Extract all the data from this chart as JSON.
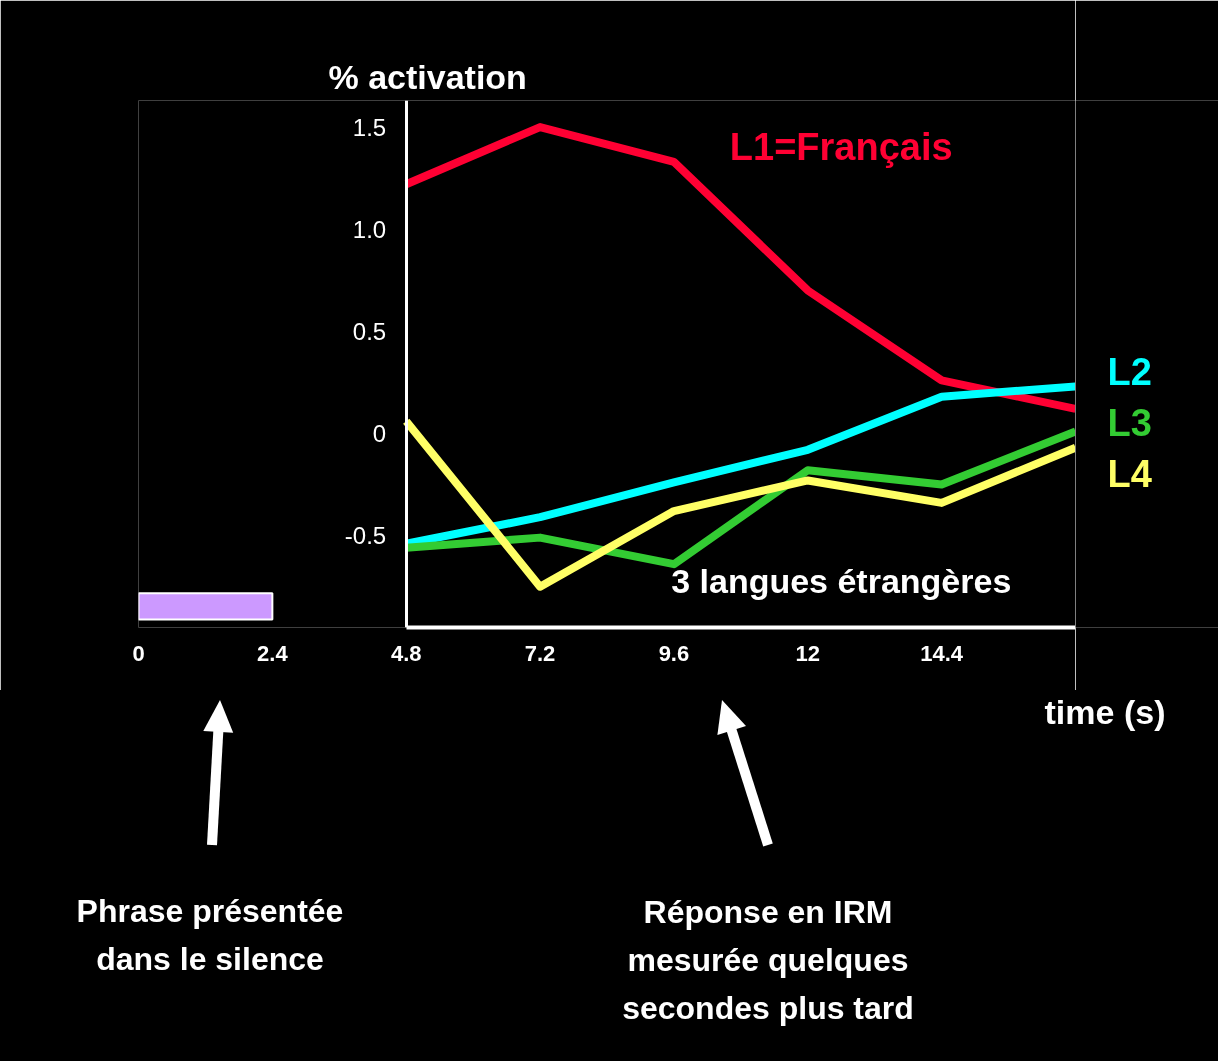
{
  "chart_data": {
    "type": "line",
    "xlabel": "time (s)",
    "ylabel": "% activation",
    "x": [
      4.8,
      7.2,
      9.6,
      12,
      14.4,
      16.8
    ],
    "series": [
      {
        "name": "L1=Français",
        "color": "#ff0033",
        "values": [
          1.22,
          1.5,
          1.33,
          0.7,
          0.26,
          0.12
        ]
      },
      {
        "name": "L2",
        "color": "#00ffff",
        "values": [
          -0.54,
          -0.41,
          -0.24,
          -0.08,
          0.18,
          0.23
        ]
      },
      {
        "name": "L3",
        "color": "#33cc33",
        "values": [
          -0.56,
          -0.51,
          -0.64,
          -0.18,
          -0.25,
          0.01
        ]
      },
      {
        "name": "L4",
        "color": "#ffff66",
        "values": [
          0.06,
          -0.75,
          -0.38,
          -0.23,
          -0.34,
          -0.07
        ]
      }
    ],
    "xlim": [
      0,
      16.8
    ],
    "ylim": [
      -0.95,
      1.63
    ],
    "xticks": [
      0,
      2.4,
      4.8,
      7.2,
      9.6,
      12,
      14.4
    ],
    "yticks": [
      {
        "value": 1.5,
        "label": "1.5"
      },
      {
        "value": 1,
        "label": "1.0"
      },
      {
        "value": 0.5,
        "label": "0.5"
      },
      {
        "value": 0,
        "label": "0"
      },
      {
        "value": -0.5,
        "label": "-0.5"
      }
    ],
    "bands": [
      {
        "axis": "x",
        "from": 0,
        "to": 2.4,
        "color": "#cc99ff"
      }
    ],
    "annotations": [
      "3 langues étrangères",
      "Phrase présentée\ndans le silence",
      "Réponse en IRM\nmesurée quelques\nsecondes plus tard"
    ],
    "grid": false,
    "marker": "none",
    "line_style": "solid"
  }
}
